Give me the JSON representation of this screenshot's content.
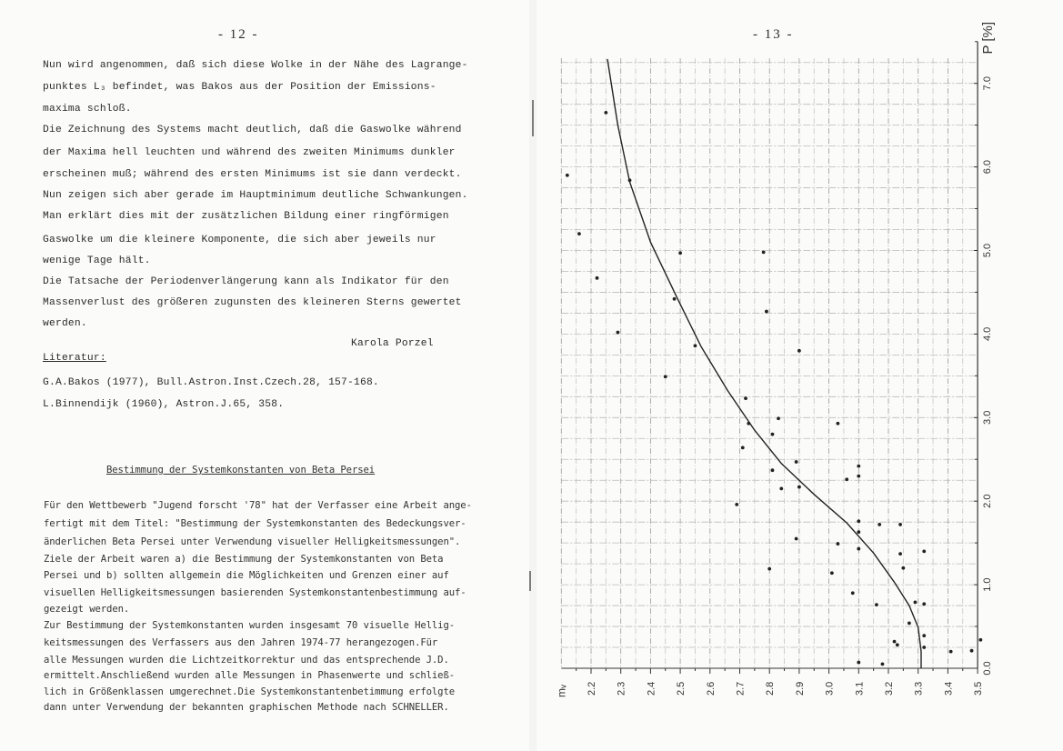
{
  "left_page": {
    "page_number": "- 12 -",
    "paragraph1": [
      "Nun wird angenommen, daß sich diese Wolke in der Nähe des Lagrange-",
      "punktes L₃ befindet, was Bakos aus der Position der Emissions-",
      "maxima schloß.",
      "Die Zeichnung des Systems macht deutlich, daß die Gaswolke während",
      "der Maxima hell leuchten und während des zweiten Minimums dunkler",
      "erscheinen muß; während des ersten Minimums ist sie dann verdeckt.",
      "Nun zeigen sich aber gerade im Hauptminimum deutliche Schwankungen.",
      "Man erklärt dies mit der zusätzlichen Bildung einer ringförmigen",
      "Gaswolke um die kleinere Komponente, die sich aber jeweils nur",
      "wenige Tage hält.",
      "Die Tatsache der Periodenverlängerung kann als Indikator für den",
      "Massenverlust des größeren zugunsten des kleineren Sterns gewertet",
      "werden."
    ],
    "author": "Karola Porzel",
    "literature_heading": "Literatur:",
    "references": [
      "G.A.Bakos (1977), Bull.Astron.Inst.Czech.28, 157-168.",
      "L.Binnendijk (1960), Astron.J.65, 358."
    ],
    "section_title": "Bestimmung der Systemkonstanten von Beta Persei",
    "paragraph2": [
      "Für den Wettbewerb \"Jugend forscht '78\" hat der Verfasser eine Arbeit ange-",
      "fertigt mit dem Titel: \"Bestimmung der Systemkonstanten des Bedeckungsver-",
      "änderlichen Beta Persei unter Verwendung visueller Helligkeitsmessungen\".",
      "Ziele der Arbeit waren a) die Bestimmung der Systemkonstanten von Beta",
      "Persei und b) sollten allgemein die Möglichkeiten und Grenzen einer auf",
      "visuellen Helligkeitsmessungen basierenden Systemkonstantenbestimmung auf-",
      "gezeigt werden.",
      "Zur Bestimmung der Systemkonstanten wurden insgesamt 70 visuelle Hellig-",
      "keitsmessungen des Verfassers aus den Jahren 1974-77 herangezogen.Für",
      "alle Messungen wurden die Lichtzeitkorrektur und das entsprechende J.D.",
      "ermittelt.Anschließend wurden alle Messungen in Phasenwerte und schließ-",
      "lich in Größenklassen umgerechnet.Die Systemkonstantenbetimmung erfolgte",
      "dann unter Verwendung der bekannten graphischen Methode nach SCHNELLER."
    ]
  },
  "right_page": {
    "page_number": "- 13 -"
  },
  "chart_data": {
    "type": "scatter",
    "xlabel": "mᵥ",
    "ylabel": "P [%]",
    "xlim": [
      2.1,
      3.5
    ],
    "ylim": [
      0.0,
      7.3
    ],
    "x_ticks": [
      "2.2",
      "2.3",
      "2.4",
      "2.5",
      "2.6",
      "2.7",
      "2.8",
      "2.9",
      "3.0",
      "3.1",
      "3.2",
      "3.3",
      "3.4",
      "3.5"
    ],
    "y_ticks": [
      "0.0",
      "1.0",
      "2.0",
      "3.0",
      "4.0",
      "5.0",
      "6.0",
      "7.0"
    ],
    "grid": true,
    "points": [
      [
        2.25,
        6.65
      ],
      [
        2.12,
        5.9
      ],
      [
        2.33,
        5.84
      ],
      [
        2.16,
        5.2
      ],
      [
        2.22,
        4.67
      ],
      [
        2.5,
        4.97
      ],
      [
        2.78,
        4.98
      ],
      [
        2.48,
        4.42
      ],
      [
        2.29,
        4.02
      ],
      [
        2.55,
        3.86
      ],
      [
        2.79,
        4.27
      ],
      [
        2.9,
        3.8
      ],
      [
        2.45,
        3.49
      ],
      [
        2.72,
        3.23
      ],
      [
        2.83,
        2.99
      ],
      [
        2.73,
        2.93
      ],
      [
        3.03,
        2.93
      ],
      [
        2.81,
        2.8
      ],
      [
        2.71,
        2.64
      ],
      [
        2.81,
        2.37
      ],
      [
        2.89,
        2.47
      ],
      [
        2.84,
        2.15
      ],
      [
        3.1,
        2.42
      ],
      [
        3.1,
        2.3
      ],
      [
        3.06,
        2.26
      ],
      [
        2.69,
        1.96
      ],
      [
        2.9,
        2.17
      ],
      [
        3.1,
        1.76
      ],
      [
        3.17,
        1.72
      ],
      [
        3.24,
        1.72
      ],
      [
        3.1,
        1.63
      ],
      [
        3.03,
        1.49
      ],
      [
        3.1,
        1.43
      ],
      [
        2.89,
        1.55
      ],
      [
        3.24,
        1.37
      ],
      [
        3.32,
        1.4
      ],
      [
        3.25,
        1.2
      ],
      [
        2.8,
        1.19
      ],
      [
        3.01,
        1.14
      ],
      [
        3.08,
        0.9
      ],
      [
        3.16,
        0.76
      ],
      [
        3.29,
        0.79
      ],
      [
        3.32,
        0.77
      ],
      [
        3.27,
        0.54
      ],
      [
        3.32,
        0.39
      ],
      [
        3.22,
        0.32
      ],
      [
        3.32,
        0.25
      ],
      [
        3.41,
        0.2
      ],
      [
        3.48,
        0.21
      ],
      [
        3.51,
        0.34
      ],
      [
        3.1,
        0.07
      ],
      [
        3.18,
        0.05
      ],
      [
        3.23,
        0.28
      ]
    ],
    "fit_curve": [
      [
        2.255,
        7.29
      ],
      [
        2.29,
        6.5
      ],
      [
        2.33,
        5.82
      ],
      [
        2.4,
        5.1
      ],
      [
        2.49,
        4.43
      ],
      [
        2.57,
        3.85
      ],
      [
        2.66,
        3.32
      ],
      [
        2.75,
        2.85
      ],
      [
        2.84,
        2.45
      ],
      [
        2.95,
        2.08
      ],
      [
        3.06,
        1.74
      ],
      [
        3.15,
        1.38
      ],
      [
        3.22,
        1.03
      ],
      [
        3.27,
        0.75
      ],
      [
        3.3,
        0.49
      ],
      [
        3.31,
        0.2
      ],
      [
        3.31,
        0.0
      ]
    ]
  }
}
